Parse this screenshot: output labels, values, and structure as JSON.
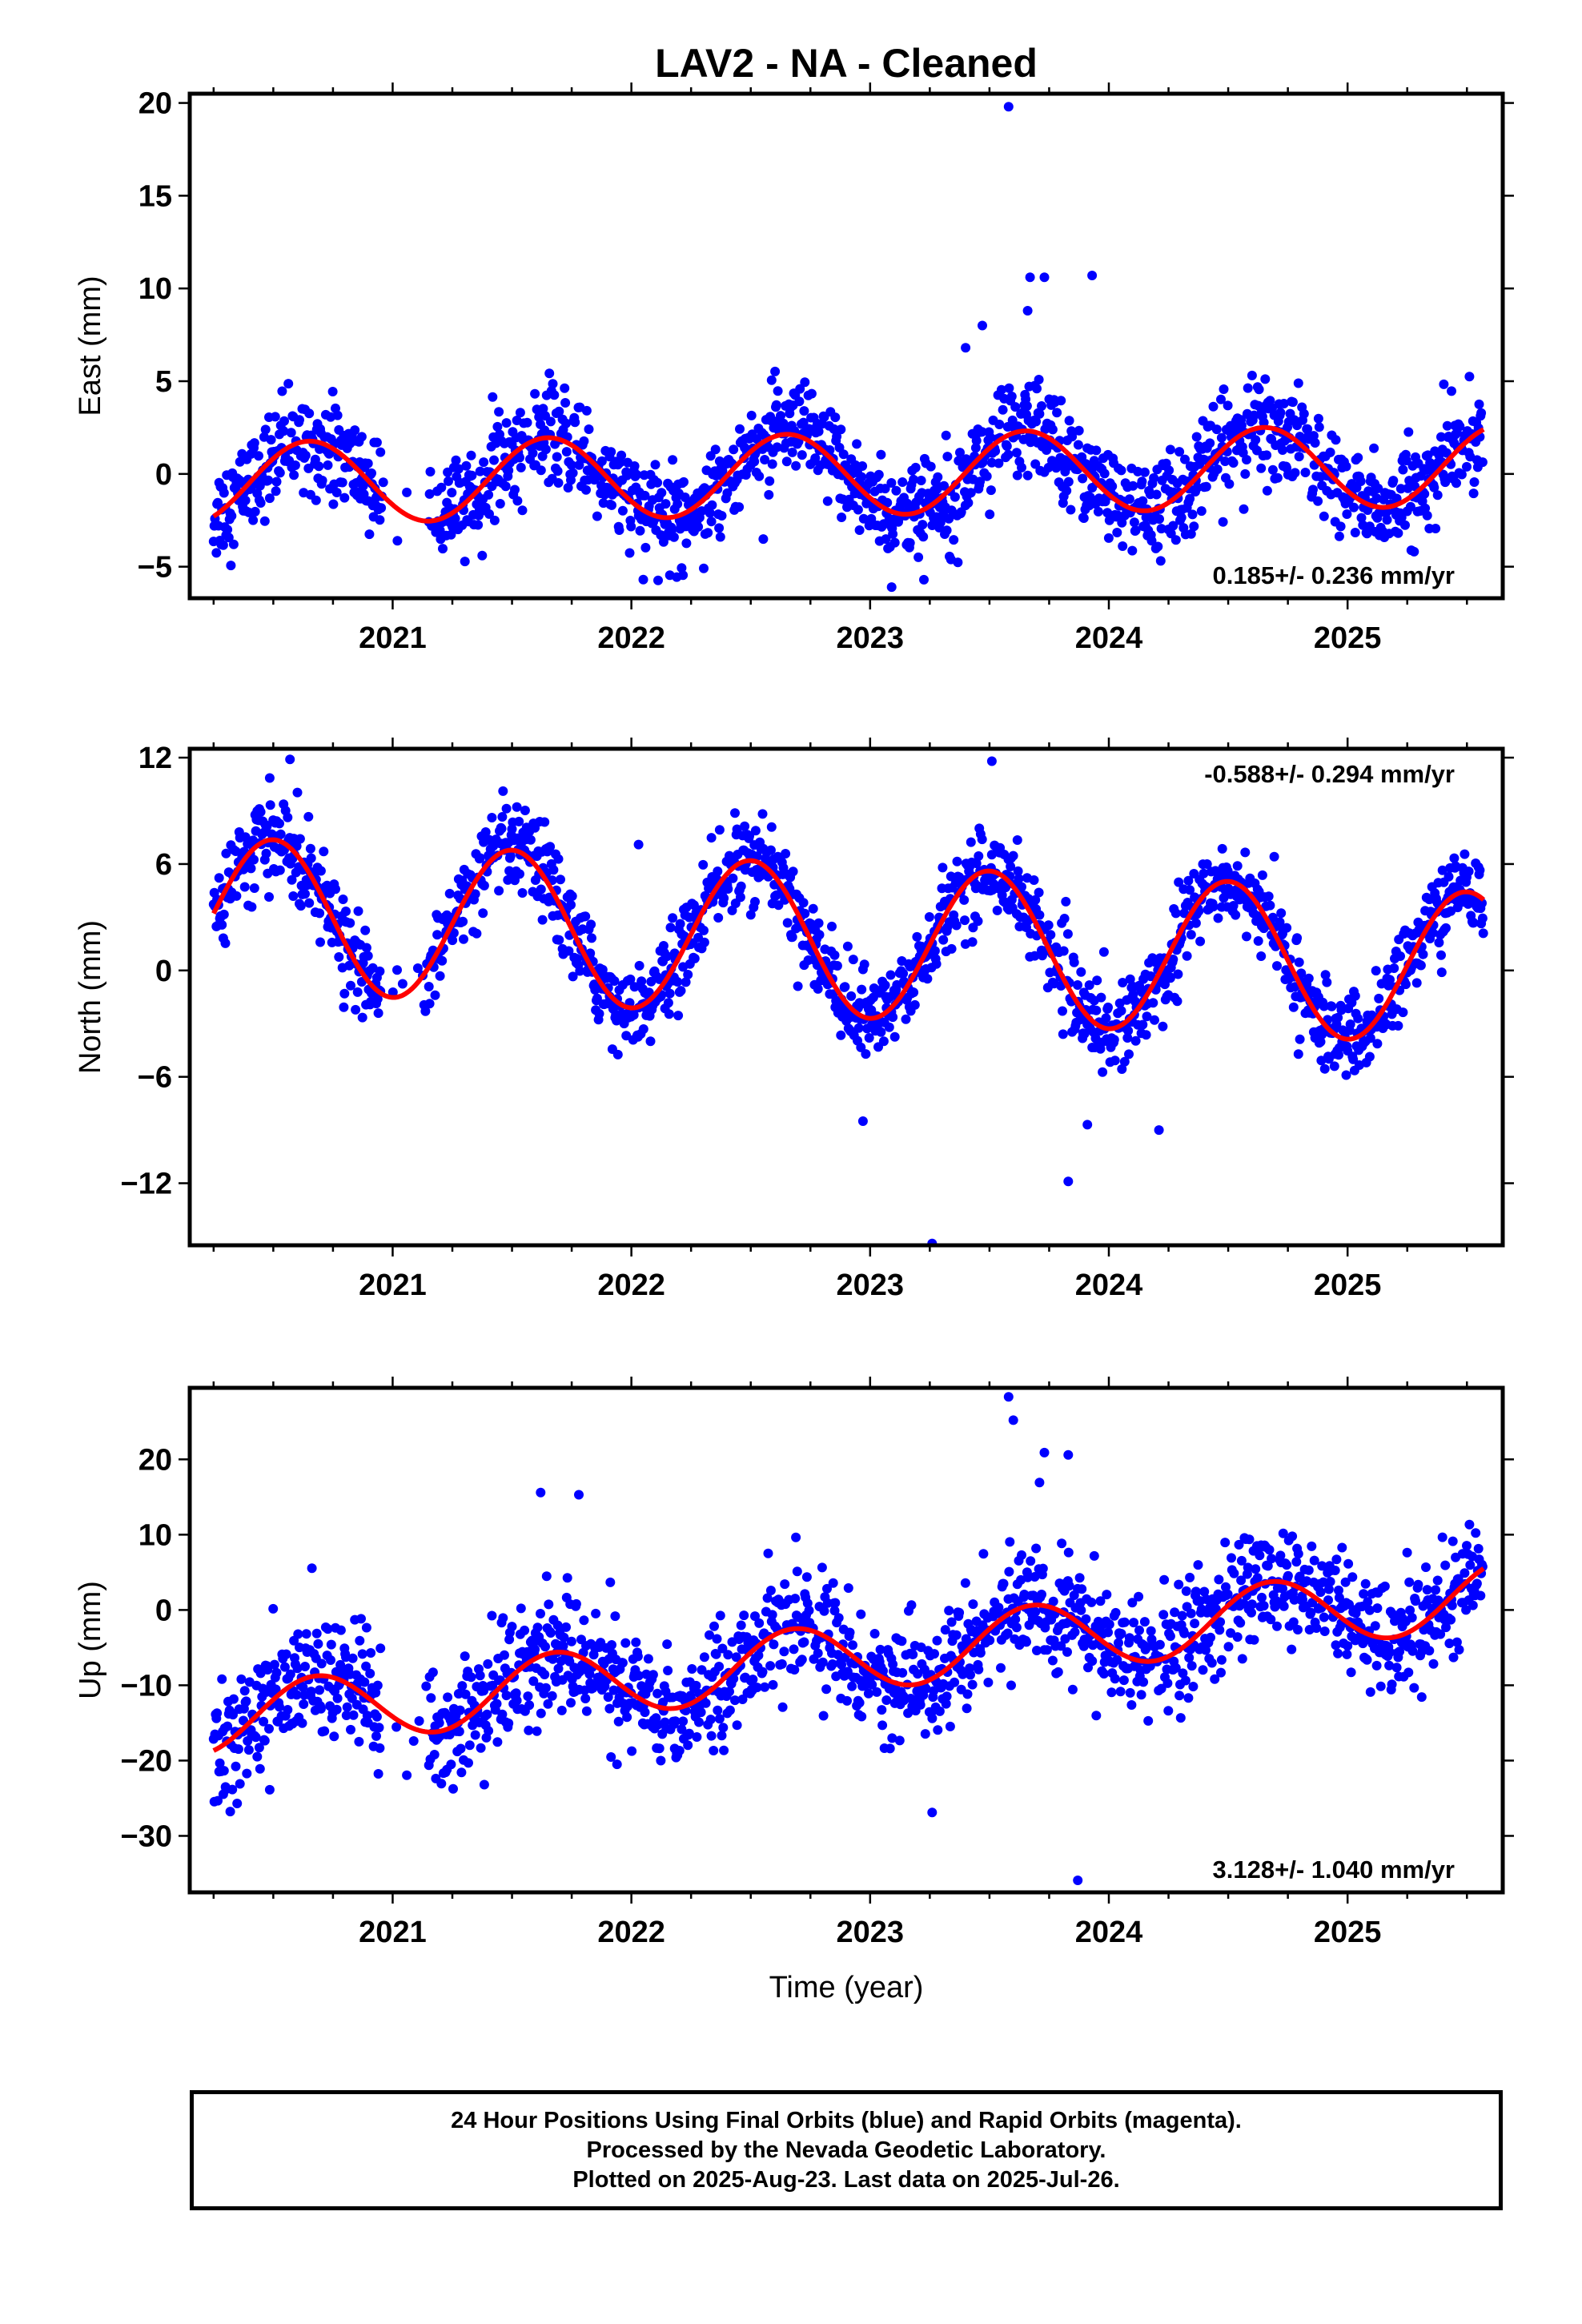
{
  "title": "LAV2  - NA - Cleaned",
  "x_axis_label": "Time (year)",
  "colors": {
    "points": "#0000ff",
    "fit": "#ff0000",
    "frame": "#000000"
  },
  "caption": {
    "line1": "24 Hour Positions Using Final Orbits (blue) and Rapid Orbits (magenta).",
    "line2": "Processed by the Nevada Geodetic Laboratory.",
    "line3": "Plotted on 2025-Aug-23. Last data on 2025-Jul-26."
  },
  "chart_data": [
    {
      "type": "scatter",
      "name": "east",
      "ylabel": "East (mm)",
      "rate_label": "0.185+/- 0.236 mm/yr",
      "rate_position": "bottom-right",
      "xlim": [
        2020.15,
        2025.65
      ],
      "ylim": [
        -6.7,
        20.5
      ],
      "x_ticks": [
        2021,
        2022,
        2023,
        2024,
        2025
      ],
      "y_ticks": [
        -5,
        0,
        5,
        10,
        15,
        20
      ],
      "fit": {
        "trend_mm_per_yr": 0.185,
        "harmonics": [
          {
            "period_yr": 1.0,
            "amplitude": 2.2,
            "peak_year_fraction": 0.65
          }
        ],
        "offset": 0.0,
        "gap": [
          2020.95,
          2021.15
        ]
      },
      "data_summary": {
        "time_start": 2020.25,
        "time_end": 2025.57,
        "scatter_mm": 1.3
      },
      "outliers": [
        [
          2023.58,
          19.8
        ],
        [
          2023.67,
          10.6
        ],
        [
          2023.73,
          10.6
        ],
        [
          2023.93,
          10.7
        ],
        [
          2023.66,
          8.8
        ],
        [
          2023.47,
          8.0
        ],
        [
          2023.4,
          6.8
        ],
        [
          2022.05,
          -5.7
        ],
        [
          2023.09,
          -6.1
        ],
        [
          2021.02,
          -3.6
        ]
      ]
    },
    {
      "type": "scatter",
      "name": "north",
      "ylabel": "North (mm)",
      "rate_label": "-0.588+/- 0.294 mm/yr",
      "rate_position": "top-right",
      "xlim": [
        2020.15,
        2025.65
      ],
      "ylim": [
        -15.5,
        12.5
      ],
      "x_ticks": [
        2021,
        2022,
        2023,
        2024,
        2025
      ],
      "y_ticks": [
        -12,
        -6,
        0,
        6,
        12
      ],
      "fit": {
        "trend_mm_per_yr": -0.588,
        "harmonics": [
          {
            "period_yr": 1.0,
            "amplitude": 4.3,
            "peak_year_fraction": 0.5
          }
        ],
        "offset": 1.6,
        "gap": [
          2020.95,
          2021.15
        ]
      },
      "data_summary": {
        "time_start": 2020.25,
        "time_end": 2025.57,
        "scatter_mm": 1.2
      },
      "outliers": [
        [
          2023.26,
          -15.4
        ],
        [
          2023.83,
          -11.9
        ],
        [
          2024.21,
          -9.0
        ],
        [
          2023.91,
          -8.7
        ],
        [
          2022.97,
          -8.5
        ],
        [
          2022.03,
          7.1
        ],
        [
          2020.57,
          11.9
        ],
        [
          2023.51,
          11.8
        ]
      ]
    },
    {
      "type": "scatter",
      "name": "up",
      "ylabel": "Up (mm)",
      "rate_label": "3.128+/- 1.040 mm/yr",
      "rate_position": "bottom-right",
      "xlim": [
        2020.15,
        2025.65
      ],
      "ylim": [
        -37.5,
        29.5
      ],
      "x_ticks": [
        2021,
        2022,
        2023,
        2024,
        2025
      ],
      "y_ticks": [
        -30,
        -20,
        -10,
        0,
        10,
        20
      ],
      "fit": {
        "trend_mm_per_yr": 3.128,
        "harmonics": [
          {
            "period_yr": 1.0,
            "amplitude": 4.5,
            "peak_year_fraction": 0.68
          }
        ],
        "offset": -6.0,
        "gap": [
          2020.95,
          2021.15
        ]
      },
      "data_summary": {
        "time_start": 2020.25,
        "time_end": 2025.57,
        "scatter_mm": 3.8
      },
      "outliers": [
        [
          2023.87,
          -35.9
        ],
        [
          2023.26,
          -26.9
        ],
        [
          2020.3,
          -23.5
        ],
        [
          2021.94,
          -20.5
        ],
        [
          2023.58,
          28.3
        ],
        [
          2023.6,
          25.2
        ],
        [
          2023.73,
          20.9
        ],
        [
          2023.83,
          20.6
        ],
        [
          2021.78,
          15.3
        ],
        [
          2021.62,
          15.6
        ]
      ]
    }
  ]
}
